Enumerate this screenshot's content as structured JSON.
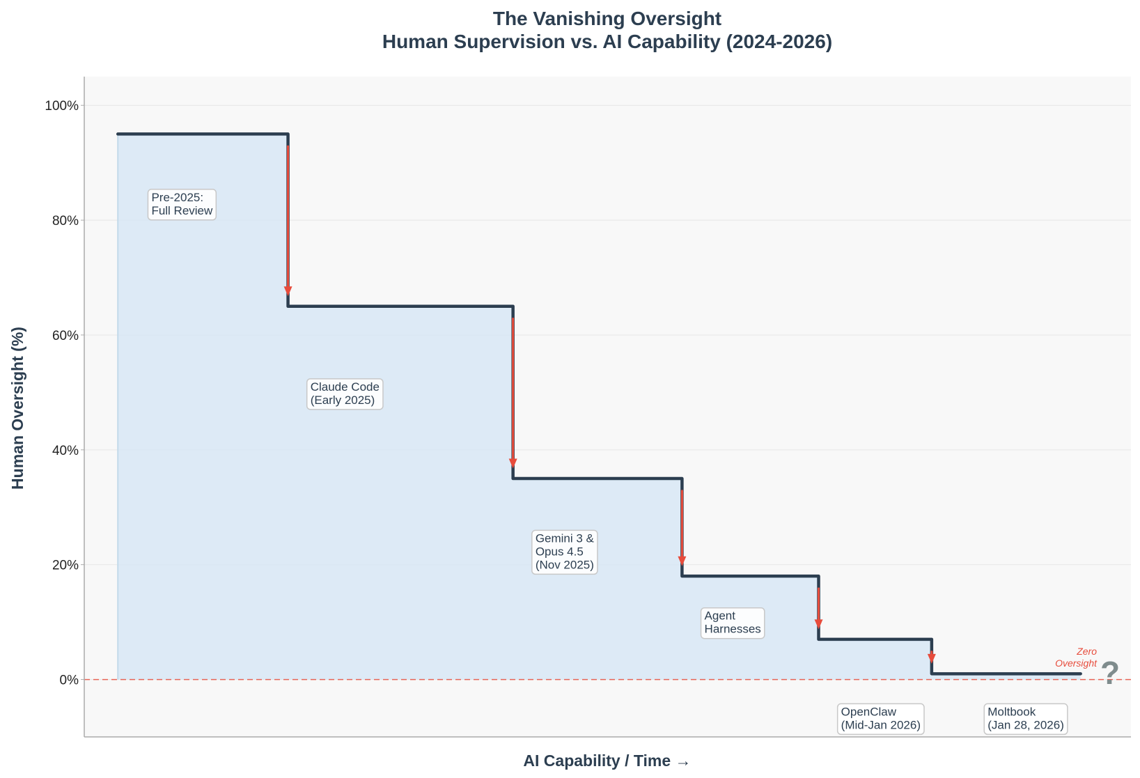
{
  "chart_data": {
    "type": "line",
    "step": true,
    "title": "The Vanishing Oversight",
    "subtitle": "Human Supervision vs. AI Capability (2024-2026)",
    "xlabel": "AI Capability / Time →",
    "ylabel": "Human Oversight (%)",
    "xlim": [
      -0.3,
      9.05
    ],
    "ylim": [
      -10,
      105
    ],
    "yticks": [
      0,
      20,
      40,
      60,
      80,
      100
    ],
    "ytick_labels": [
      "0%",
      "20%",
      "40%",
      "60%",
      "80%",
      "100%"
    ],
    "grid": true,
    "series": [
      {
        "x": [
          0,
          1.52,
          1.52,
          3.53,
          3.53,
          5.04,
          5.04,
          6.26,
          6.26,
          7.27,
          7.27,
          8.6
        ],
        "values": [
          95,
          95,
          65,
          65,
          35,
          35,
          18,
          18,
          7,
          7,
          1,
          1
        ],
        "color": "#2c3e50",
        "fill_color": "#d6e6f5"
      }
    ],
    "drops": [
      {
        "x": 1.52,
        "from": 93,
        "to": 67
      },
      {
        "x": 3.53,
        "from": 63,
        "to": 37
      },
      {
        "x": 5.04,
        "from": 33,
        "to": 20
      },
      {
        "x": 6.26,
        "from": 16,
        "to": 9
      },
      {
        "x": 7.27,
        "from": 5,
        "to": 3
      }
    ],
    "drop_color": "#e74c3c",
    "zero_line_color": "#e74c3c",
    "annotations": [
      {
        "lines": [
          "Pre-2025:",
          "Full Review"
        ],
        "x": 0.3,
        "y": 80.4
      },
      {
        "lines": [
          "Claude Code",
          "(Early 2025)"
        ],
        "x": 1.72,
        "y": 47.4
      },
      {
        "lines": [
          "Gemini 3 &",
          "Opus 4.5",
          "(Nov 2025)"
        ],
        "x": 3.73,
        "y": 18.7
      },
      {
        "lines": [
          "Agent",
          "Harnesses"
        ],
        "x": 5.24,
        "y": 7.5
      },
      {
        "lines": [
          "OpenClaw",
          "(Mid-Jan 2026)"
        ],
        "x": 6.46,
        "y": -9.2
      },
      {
        "lines": [
          "Moltbook",
          "(Jan 28, 2026)"
        ],
        "x": 7.77,
        "y": -9.2
      }
    ],
    "zero_label": [
      "Zero",
      "Oversight"
    ],
    "question_mark": "?"
  }
}
